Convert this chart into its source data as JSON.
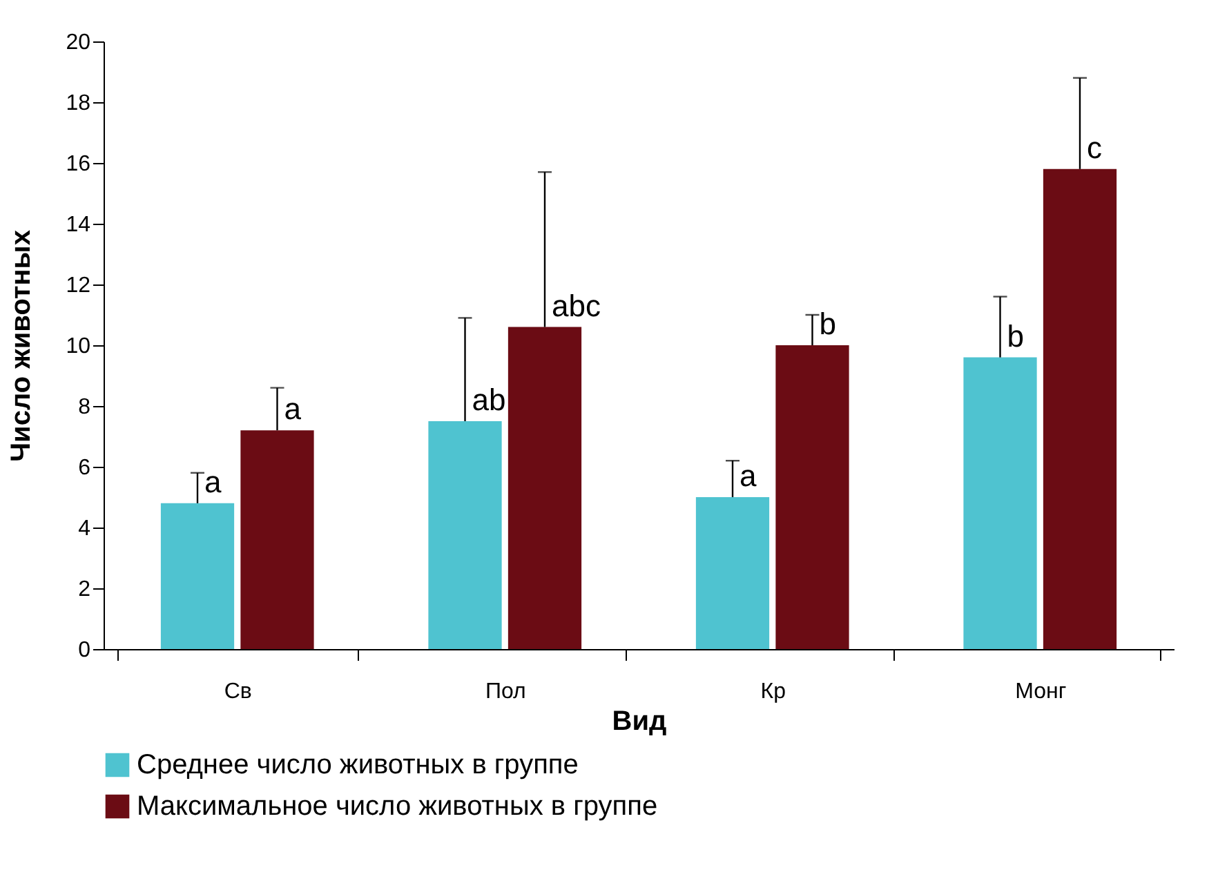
{
  "chart_data": {
    "type": "bar",
    "xlabel": "Вид",
    "ylabel": "Число животных",
    "categories": [
      "Св",
      "Пол",
      "Кр",
      "Монг"
    ],
    "ylim": [
      0,
      20
    ],
    "yticks": [
      0,
      2,
      4,
      6,
      8,
      10,
      12,
      14,
      16,
      18,
      20
    ],
    "grid": false,
    "legend": "bottom",
    "series": [
      {
        "name": "Среднее число животных в группе",
        "color": "#4fc3d0",
        "values": [
          4.8,
          7.5,
          5.0,
          9.6
        ],
        "errors": [
          [
            4.8,
            5.8
          ],
          [
            7.5,
            10.9
          ],
          [
            5.0,
            6.2
          ],
          [
            9.6,
            11.6
          ]
        ],
        "value_labels": [
          "a",
          "ab",
          "a",
          "b"
        ]
      },
      {
        "name": "Максимальное число животных в группе",
        "color": "#6b0c14",
        "values": [
          7.2,
          10.6,
          10.0,
          15.8
        ],
        "errors": [
          [
            7.2,
            8.6
          ],
          [
            10.6,
            15.7
          ],
          [
            10.0,
            11.0
          ],
          [
            15.8,
            18.8
          ]
        ],
        "value_labels": [
          "a",
          "abc",
          "b",
          "c"
        ]
      }
    ]
  }
}
